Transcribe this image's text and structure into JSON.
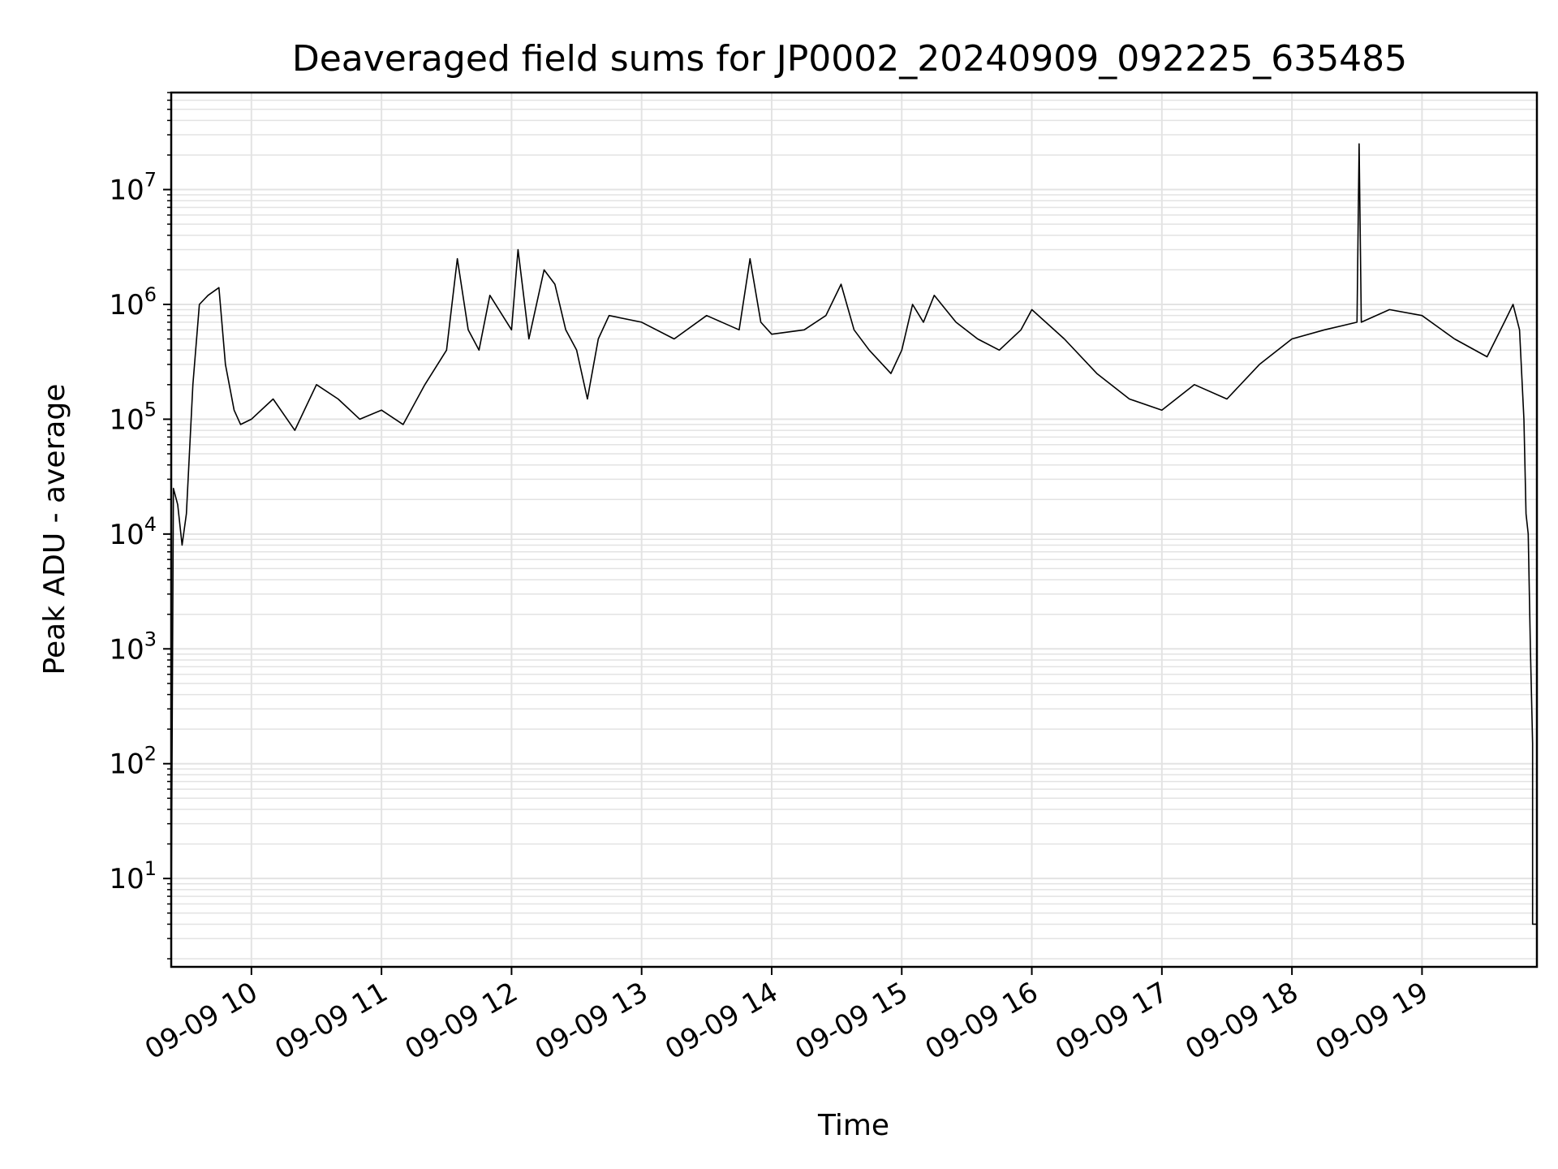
{
  "chart_data": {
    "type": "line",
    "title": "Deaveraged field sums for JP0002_20240909_092225_635485",
    "xlabel": "Time",
    "ylabel": "Peak ADU - average",
    "yscale": "log",
    "grid": true,
    "line_color": "#000000",
    "grid_color": "#e3e3e3",
    "x_date": "2024-09-09",
    "xlim": [
      "2024-09-09 09:23",
      "2024-09-09 19:53"
    ],
    "ylim": [
      1.7,
      70000000
    ],
    "x_ticks": [
      {
        "time": "2024-09-09 10:00",
        "label": "09-09 10"
      },
      {
        "time": "2024-09-09 11:00",
        "label": "09-09 11"
      },
      {
        "time": "2024-09-09 12:00",
        "label": "09-09 12"
      },
      {
        "time": "2024-09-09 13:00",
        "label": "09-09 13"
      },
      {
        "time": "2024-09-09 14:00",
        "label": "09-09 14"
      },
      {
        "time": "2024-09-09 15:00",
        "label": "09-09 15"
      },
      {
        "time": "2024-09-09 16:00",
        "label": "09-09 16"
      },
      {
        "time": "2024-09-09 17:00",
        "label": "09-09 17"
      },
      {
        "time": "2024-09-09 18:00",
        "label": "09-09 18"
      },
      {
        "time": "2024-09-09 19:00",
        "label": "09-09 19"
      }
    ],
    "y_ticks": [
      {
        "value": 10,
        "base": "10",
        "exp": "1"
      },
      {
        "value": 100,
        "base": "10",
        "exp": "2"
      },
      {
        "value": 1000,
        "base": "10",
        "exp": "3"
      },
      {
        "value": 10000,
        "base": "10",
        "exp": "4"
      },
      {
        "value": 100000,
        "base": "10",
        "exp": "5"
      },
      {
        "value": 1000000,
        "base": "10",
        "exp": "6"
      },
      {
        "value": 10000000,
        "base": "10",
        "exp": "7"
      }
    ],
    "series": [
      {
        "points": [
          [
            "2024-09-09 09:23",
            4
          ],
          [
            "2024-09-09 09:24",
            25000
          ],
          [
            "2024-09-09 09:26",
            18000
          ],
          [
            "2024-09-09 09:28",
            8000
          ],
          [
            "2024-09-09 09:30",
            15000
          ],
          [
            "2024-09-09 09:33",
            200000
          ],
          [
            "2024-09-09 09:36",
            1000000
          ],
          [
            "2024-09-09 09:40",
            1200000
          ],
          [
            "2024-09-09 09:45",
            1400000
          ],
          [
            "2024-09-09 09:48",
            300000
          ],
          [
            "2024-09-09 09:52",
            120000
          ],
          [
            "2024-09-09 09:55",
            90000
          ],
          [
            "2024-09-09 10:00",
            100000
          ],
          [
            "2024-09-09 10:10",
            150000
          ],
          [
            "2024-09-09 10:20",
            80000
          ],
          [
            "2024-09-09 10:30",
            200000
          ],
          [
            "2024-09-09 10:40",
            150000
          ],
          [
            "2024-09-09 10:50",
            100000
          ],
          [
            "2024-09-09 11:00",
            120000
          ],
          [
            "2024-09-09 11:10",
            90000
          ],
          [
            "2024-09-09 11:20",
            200000
          ],
          [
            "2024-09-09 11:30",
            400000
          ],
          [
            "2024-09-09 11:35",
            2500000
          ],
          [
            "2024-09-09 11:40",
            600000
          ],
          [
            "2024-09-09 11:45",
            400000
          ],
          [
            "2024-09-09 11:50",
            1200000
          ],
          [
            "2024-09-09 12:00",
            600000
          ],
          [
            "2024-09-09 12:03",
            3000000
          ],
          [
            "2024-09-09 12:08",
            500000
          ],
          [
            "2024-09-09 12:15",
            2000000
          ],
          [
            "2024-09-09 12:20",
            1500000
          ],
          [
            "2024-09-09 12:25",
            600000
          ],
          [
            "2024-09-09 12:30",
            400000
          ],
          [
            "2024-09-09 12:35",
            150000
          ],
          [
            "2024-09-09 12:40",
            500000
          ],
          [
            "2024-09-09 12:45",
            800000
          ],
          [
            "2024-09-09 13:00",
            700000
          ],
          [
            "2024-09-09 13:15",
            500000
          ],
          [
            "2024-09-09 13:30",
            800000
          ],
          [
            "2024-09-09 13:45",
            600000
          ],
          [
            "2024-09-09 13:50",
            2500000
          ],
          [
            "2024-09-09 13:55",
            700000
          ],
          [
            "2024-09-09 14:00",
            550000
          ],
          [
            "2024-09-09 14:15",
            600000
          ],
          [
            "2024-09-09 14:25",
            800000
          ],
          [
            "2024-09-09 14:32",
            1500000
          ],
          [
            "2024-09-09 14:38",
            600000
          ],
          [
            "2024-09-09 14:45",
            400000
          ],
          [
            "2024-09-09 14:55",
            250000
          ],
          [
            "2024-09-09 15:00",
            400000
          ],
          [
            "2024-09-09 15:05",
            1000000
          ],
          [
            "2024-09-09 15:10",
            700000
          ],
          [
            "2024-09-09 15:15",
            1200000
          ],
          [
            "2024-09-09 15:25",
            700000
          ],
          [
            "2024-09-09 15:35",
            500000
          ],
          [
            "2024-09-09 15:45",
            400000
          ],
          [
            "2024-09-09 15:55",
            600000
          ],
          [
            "2024-09-09 16:00",
            900000
          ],
          [
            "2024-09-09 16:15",
            500000
          ],
          [
            "2024-09-09 16:30",
            250000
          ],
          [
            "2024-09-09 16:45",
            150000
          ],
          [
            "2024-09-09 17:00",
            120000
          ],
          [
            "2024-09-09 17:15",
            200000
          ],
          [
            "2024-09-09 17:30",
            150000
          ],
          [
            "2024-09-09 17:45",
            300000
          ],
          [
            "2024-09-09 18:00",
            500000
          ],
          [
            "2024-09-09 18:15",
            600000
          ],
          [
            "2024-09-09 18:30",
            700000
          ],
          [
            "2024-09-09 18:31",
            25000000
          ],
          [
            "2024-09-09 18:32",
            700000
          ],
          [
            "2024-09-09 18:45",
            900000
          ],
          [
            "2024-09-09 19:00",
            800000
          ],
          [
            "2024-09-09 19:15",
            500000
          ],
          [
            "2024-09-09 19:30",
            350000
          ],
          [
            "2024-09-09 19:38",
            700000
          ],
          [
            "2024-09-09 19:42",
            1000000
          ],
          [
            "2024-09-09 19:45",
            600000
          ],
          [
            "2024-09-09 19:47",
            100000
          ],
          [
            "2024-09-09 19:48",
            15000
          ],
          [
            "2024-09-09 19:49",
            10000
          ],
          [
            "2024-09-09 19:50",
            1000
          ],
          [
            "2024-09-09 19:51",
            150
          ],
          [
            "2024-09-09 19:51",
            4
          ],
          [
            "2024-09-09 19:53",
            4
          ]
        ]
      }
    ]
  }
}
